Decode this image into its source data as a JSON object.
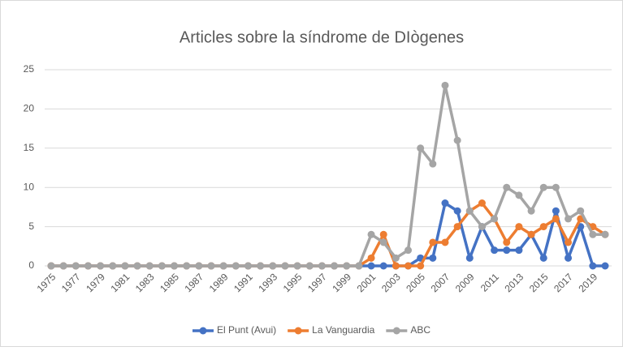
{
  "chart_data": {
    "type": "line",
    "title": "Articles sobre la síndrome de DIògenes",
    "categories": [
      "1975",
      null,
      "1977",
      null,
      "1979",
      null,
      "1981",
      null,
      "1983",
      null,
      "1985",
      null,
      "1987",
      null,
      "1989",
      null,
      "1991",
      null,
      "1993",
      null,
      "1995",
      null,
      "1997",
      null,
      "1999",
      null,
      "2001",
      null,
      "2003",
      null,
      "2005",
      null,
      "2007",
      null,
      "2009",
      null,
      "2011",
      null,
      "2013",
      null,
      "2015",
      null,
      "2017",
      null,
      "2019",
      null
    ],
    "series": [
      {
        "name": "El Punt (Avui)",
        "color": "#4472c4",
        "values": [
          0,
          0,
          0,
          0,
          0,
          0,
          0,
          0,
          0,
          0,
          0,
          0,
          0,
          0,
          0,
          0,
          0,
          0,
          0,
          0,
          0,
          0,
          0,
          0,
          0,
          0,
          0,
          0,
          0,
          0,
          1,
          1,
          8,
          7,
          1,
          5,
          2,
          2,
          2,
          4,
          1,
          7,
          1,
          5,
          0,
          0
        ]
      },
      {
        "name": "La Vanguardia",
        "color": "#ed7d31",
        "values": [
          0,
          0,
          0,
          0,
          0,
          0,
          0,
          0,
          0,
          0,
          0,
          0,
          0,
          0,
          0,
          0,
          0,
          0,
          0,
          0,
          0,
          0,
          0,
          0,
          0,
          0,
          1,
          4,
          0,
          0,
          0,
          3,
          3,
          5,
          7,
          8,
          6,
          3,
          5,
          4,
          5,
          6,
          3,
          6,
          5,
          4
        ]
      },
      {
        "name": "ABC",
        "color": "#a5a5a5",
        "values": [
          0,
          0,
          0,
          0,
          0,
          0,
          0,
          0,
          0,
          0,
          0,
          0,
          0,
          0,
          0,
          0,
          0,
          0,
          0,
          0,
          0,
          0,
          0,
          0,
          0,
          0,
          4,
          3,
          1,
          2,
          15,
          13,
          23,
          16,
          7,
          5,
          6,
          10,
          9,
          7,
          10,
          10,
          6,
          7,
          4,
          4
        ]
      }
    ],
    "ylim": [
      0,
      25
    ],
    "yticks": [
      0,
      5,
      10,
      15,
      20,
      25
    ],
    "grid": true,
    "legend": "bottom"
  }
}
